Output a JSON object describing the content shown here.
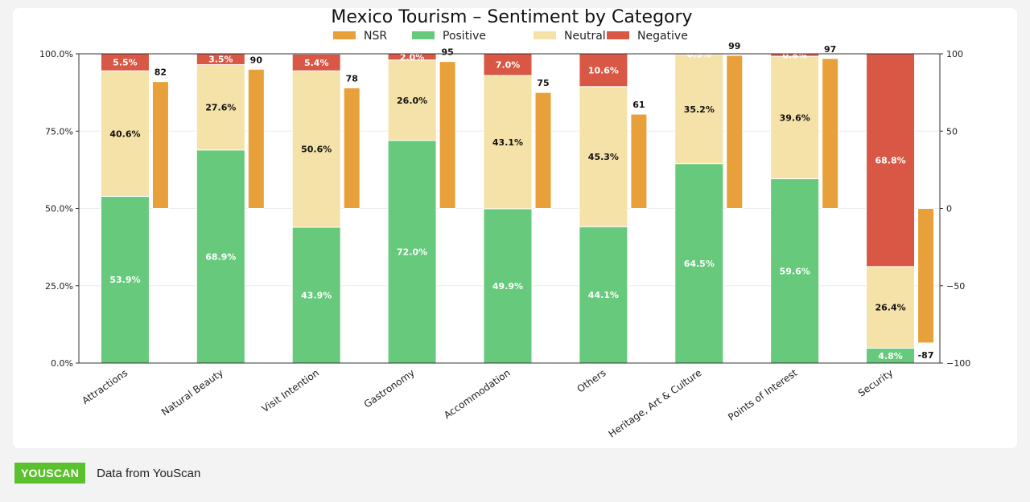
{
  "chart_data": {
    "type": "bar",
    "title": "Mexico Tourism – Sentiment by Category",
    "categories": [
      "Attractions",
      "Natural Beauty",
      "Visit Intention",
      "Gastronomy",
      "Accommodation",
      "Others",
      "Heritage, Art & Culture",
      "Points of Interest",
      "Security"
    ],
    "series": [
      {
        "name": "Positive",
        "axis": "left",
        "stacked": true,
        "values": [
          53.9,
          68.9,
          43.9,
          72.0,
          49.9,
          44.1,
          64.5,
          59.6,
          4.8
        ],
        "color": "#66c97b"
      },
      {
        "name": "Neutral",
        "axis": "left",
        "stacked": true,
        "values": [
          40.6,
          27.6,
          50.6,
          26.0,
          43.1,
          45.3,
          35.2,
          39.6,
          26.4
        ],
        "color": "#f5e2a8"
      },
      {
        "name": "Negative",
        "axis": "left",
        "stacked": true,
        "values": [
          5.5,
          3.5,
          5.4,
          2.0,
          7.0,
          10.6,
          0.3,
          0.8,
          68.8
        ],
        "color": "#d95745"
      },
      {
        "name": "NSR",
        "axis": "right",
        "stacked": false,
        "values": [
          82,
          90,
          78,
          95,
          75,
          61,
          99,
          97,
          -87
        ],
        "color": "#e8a13a"
      }
    ],
    "left_axis": {
      "ylim": [
        0,
        100
      ],
      "ticks": [
        "0.0%",
        "25.0%",
        "50.0%",
        "75.0%",
        "100.0%"
      ]
    },
    "right_axis": {
      "ylim": [
        -100,
        100
      ],
      "ticks": [
        "−100",
        "−50",
        "0",
        "50",
        "100"
      ]
    },
    "legend": {
      "placement": "top-center",
      "order": [
        "NSR",
        "Positive",
        "Neutral",
        "Negative"
      ]
    },
    "grid": true
  },
  "footer": {
    "logo": "YOUSCAN",
    "source": "Data from YouScan"
  }
}
